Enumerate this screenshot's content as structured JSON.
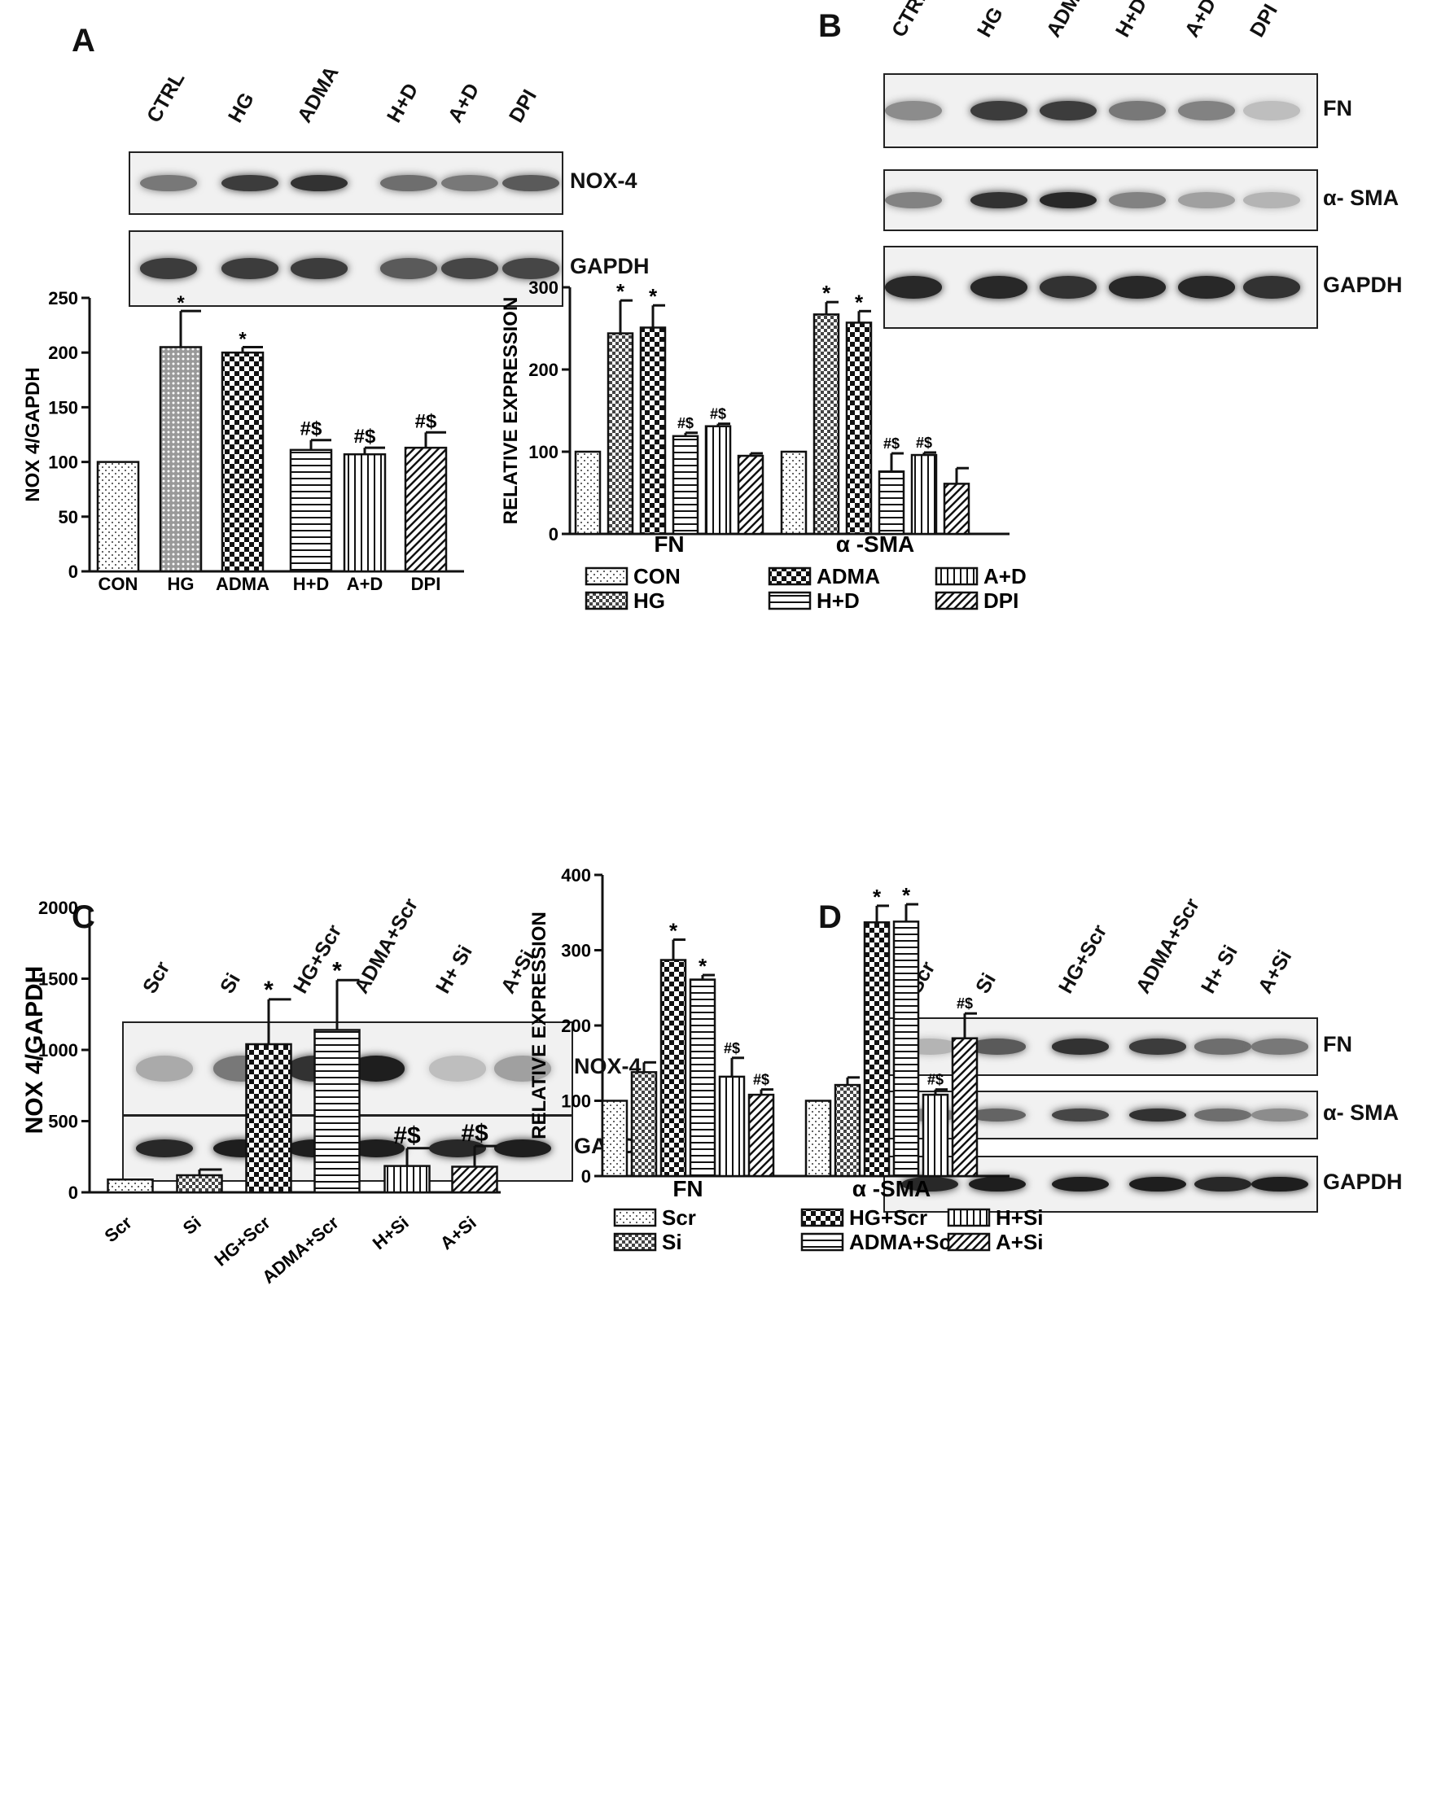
{
  "panels": {
    "A": {
      "letter": "A",
      "lanes": [
        "CTRL",
        "HG",
        "ADMA",
        "H+D",
        "A+D",
        "DPI"
      ],
      "blots": [
        {
          "label": "NOX-4",
          "bands": [
            0.55,
            0.85,
            0.9,
            0.6,
            0.55,
            0.7
          ]
        },
        {
          "label": "GAPDH",
          "bands": [
            0.85,
            0.85,
            0.85,
            0.7,
            0.8,
            0.8
          ]
        }
      ]
    },
    "B": {
      "letter": "B",
      "lanes": [
        "CTRL",
        "HG",
        "ADMA",
        "H+D",
        "A+D",
        "DPI"
      ],
      "blots": [
        {
          "label": "FN",
          "bands": [
            0.45,
            0.85,
            0.85,
            0.55,
            0.5,
            0.2
          ]
        },
        {
          "label": "α- SMA",
          "bands": [
            0.5,
            0.9,
            0.95,
            0.5,
            0.35,
            0.25
          ]
        },
        {
          "label": "GAPDH",
          "bands": [
            0.95,
            0.95,
            0.9,
            0.95,
            0.95,
            0.9
          ]
        }
      ]
    },
    "C": {
      "letter": "C",
      "lanes": [
        "Scr",
        "Si",
        "HG+Scr",
        "ADMA+Scr",
        "H+ Si",
        "A+Si"
      ],
      "blots": [
        {
          "label": "NOX-4",
          "bands": [
            0.3,
            0.55,
            0.9,
            1.0,
            0.2,
            0.35
          ]
        },
        {
          "label": "GAPDH",
          "bands": [
            0.95,
            1.0,
            1.0,
            1.0,
            0.95,
            1.0
          ]
        }
      ]
    },
    "D": {
      "letter": "D",
      "lanes": [
        "Scr",
        "Si",
        "HG+Scr",
        "ADMA+Scr",
        "H+ Si",
        "A+Si"
      ],
      "blots": [
        {
          "label": "FN",
          "bands": [
            0.25,
            0.7,
            0.9,
            0.85,
            0.6,
            0.55
          ]
        },
        {
          "label": "α- SMA",
          "bands": [
            0.45,
            0.65,
            0.8,
            0.9,
            0.6,
            0.45
          ]
        },
        {
          "label": "GAPDH",
          "bands": [
            0.95,
            1.0,
            1.0,
            1.0,
            0.95,
            1.0
          ]
        }
      ]
    }
  },
  "chart_data": [
    {
      "id": "A",
      "type": "bar",
      "ylabel": "NOX 4/GAPDH",
      "xlabel": "",
      "ylim": [
        0,
        250
      ],
      "yticks": [
        0,
        50,
        100,
        150,
        200,
        250
      ],
      "categories": [
        "CON",
        "HG",
        "ADMA",
        "H+D",
        "A+D",
        "DPI"
      ],
      "values": [
        100,
        205,
        200,
        111,
        107,
        113
      ],
      "errors": [
        0,
        33,
        5,
        9,
        6,
        14
      ],
      "annotations": [
        "",
        "*",
        "*",
        "#$",
        "#$",
        "#$"
      ],
      "patterns": [
        "dots",
        "dots-dense",
        "checker",
        "hlines",
        "vlines",
        "diag"
      ]
    },
    {
      "id": "B",
      "type": "bar",
      "ylabel": "RELATIVE EXPRESSION",
      "xlabel": "",
      "ylim": [
        0,
        300
      ],
      "yticks": [
        0,
        100,
        200,
        300
      ],
      "groups": [
        "FN",
        "α -SMA"
      ],
      "series": [
        {
          "name": "CON",
          "values": [
            100,
            100
          ],
          "errors": [
            0,
            0
          ],
          "annotations": [
            "",
            ""
          ],
          "pattern": "dots"
        },
        {
          "name": "HG",
          "values": [
            244,
            267
          ],
          "errors": [
            40,
            15
          ],
          "annotations": [
            "*",
            "*"
          ],
          "pattern": "checker-small"
        },
        {
          "name": "ADMA",
          "values": [
            251,
            257
          ],
          "errors": [
            27,
            14
          ],
          "annotations": [
            "*",
            "*"
          ],
          "pattern": "checker"
        },
        {
          "name": "H+D",
          "values": [
            119,
            76
          ],
          "errors": [
            4,
            22
          ],
          "annotations": [
            "#$",
            "#$"
          ],
          "pattern": "hlines"
        },
        {
          "name": "A+D",
          "values": [
            131,
            96
          ],
          "errors": [
            3,
            3
          ],
          "annotations": [
            "#$",
            "#$"
          ],
          "pattern": "vlines"
        },
        {
          "name": "DPI",
          "values": [
            95,
            61
          ],
          "errors": [
            3,
            19
          ],
          "annotations": [
            "",
            ""
          ],
          "pattern": "diag"
        }
      ]
    },
    {
      "id": "C",
      "type": "bar",
      "ylabel": "NOX 4/GAPDH",
      "xlabel": "",
      "ylim": [
        0,
        2000
      ],
      "yticks": [
        0,
        500,
        1000,
        1500,
        2000
      ],
      "categories": [
        "Scr",
        "Si",
        "HG+Scr",
        "ADMA+Scr",
        "H+Si",
        "A+Si"
      ],
      "values": [
        90,
        120,
        1040,
        1140,
        185,
        180
      ],
      "errors": [
        0,
        40,
        315,
        350,
        125,
        145
      ],
      "annotations": [
        "",
        "",
        "*",
        "*",
        "#$",
        "#$"
      ],
      "patterns": [
        "dots",
        "checker-small",
        "checker",
        "hlines",
        "vlines",
        "diag"
      ]
    },
    {
      "id": "D",
      "type": "bar",
      "ylabel": "RELATIVE EXPRESSION",
      "xlabel": "",
      "ylim": [
        0,
        400
      ],
      "yticks": [
        0,
        100,
        200,
        300,
        400
      ],
      "groups": [
        "FN",
        "α -SMA"
      ],
      "series": [
        {
          "name": "Scr",
          "values": [
            100,
            100
          ],
          "errors": [
            0,
            0
          ],
          "annotations": [
            "",
            ""
          ],
          "pattern": "dots"
        },
        {
          "name": "Si",
          "values": [
            138,
            121
          ],
          "errors": [
            13,
            10
          ],
          "annotations": [
            "",
            ""
          ],
          "pattern": "checker-small"
        },
        {
          "name": "HG+Scr",
          "values": [
            287,
            337
          ],
          "errors": [
            27,
            22
          ],
          "annotations": [
            "*",
            "*"
          ],
          "pattern": "checker"
        },
        {
          "name": "ADMA+Scr",
          "values": [
            261,
            338
          ],
          "errors": [
            6,
            23
          ],
          "annotations": [
            "*",
            "*"
          ],
          "pattern": "hlines"
        },
        {
          "name": "H+Si",
          "values": [
            132,
            108
          ],
          "errors": [
            25,
            7
          ],
          "annotations": [
            "#$",
            "#$"
          ],
          "pattern": "vlines"
        },
        {
          "name": "A+Si",
          "values": [
            108,
            183
          ],
          "errors": [
            7,
            33
          ],
          "annotations": [
            "#$",
            "#$"
          ],
          "pattern": "diag"
        }
      ]
    }
  ]
}
